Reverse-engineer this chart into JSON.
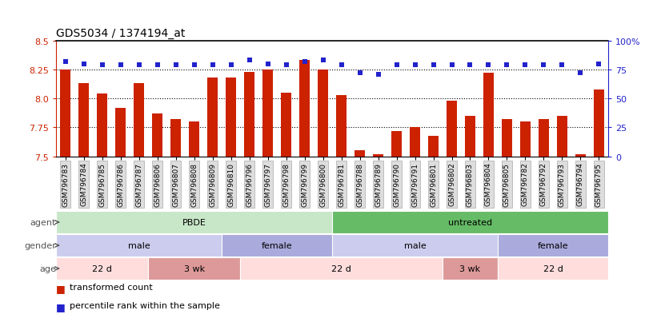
{
  "title": "GDS5034 / 1374194_at",
  "samples": [
    "GSM796783",
    "GSM796784",
    "GSM796785",
    "GSM796786",
    "GSM796787",
    "GSM796806",
    "GSM796807",
    "GSM796808",
    "GSM796809",
    "GSM796810",
    "GSM796796",
    "GSM796797",
    "GSM796798",
    "GSM796799",
    "GSM796800",
    "GSM796781",
    "GSM796788",
    "GSM796789",
    "GSM796790",
    "GSM796791",
    "GSM796801",
    "GSM796802",
    "GSM796803",
    "GSM796804",
    "GSM796805",
    "GSM796782",
    "GSM796792",
    "GSM796793",
    "GSM796794",
    "GSM796795"
  ],
  "bar_values": [
    8.25,
    8.13,
    8.04,
    7.92,
    8.13,
    7.87,
    7.82,
    7.8,
    8.18,
    8.18,
    8.23,
    8.25,
    8.05,
    8.33,
    8.25,
    8.03,
    7.55,
    7.52,
    7.72,
    7.75,
    7.68,
    7.98,
    7.85,
    8.22,
    7.82,
    7.8,
    7.82,
    7.85,
    7.52,
    8.08
  ],
  "percentile_values": [
    82,
    80,
    79,
    79,
    79,
    79,
    79,
    79,
    79,
    79,
    83,
    80,
    79,
    82,
    83,
    79,
    72,
    71,
    79,
    79,
    79,
    79,
    79,
    79,
    79,
    79,
    79,
    79,
    72,
    80
  ],
  "ylim_left": [
    7.5,
    8.5
  ],
  "ylim_right": [
    0,
    100
  ],
  "yticks_left": [
    7.5,
    7.75,
    8.0,
    8.25,
    8.5
  ],
  "yticks_right": [
    0,
    25,
    50,
    75,
    100
  ],
  "ytick_labels_right": [
    "0",
    "25",
    "50",
    "75",
    "100%"
  ],
  "bar_color": "#cc2200",
  "dot_color": "#2222cc",
  "agent_groups": [
    {
      "label": "PBDE",
      "start": 0,
      "end": 14,
      "color": "#c8e6c8"
    },
    {
      "label": "untreated",
      "start": 15,
      "end": 29,
      "color": "#66bb66"
    }
  ],
  "gender_groups": [
    {
      "label": "male",
      "start": 0,
      "end": 8,
      "color": "#ccccee"
    },
    {
      "label": "female",
      "start": 9,
      "end": 14,
      "color": "#aaaadd"
    },
    {
      "label": "male",
      "start": 15,
      "end": 23,
      "color": "#ccccee"
    },
    {
      "label": "female",
      "start": 24,
      "end": 29,
      "color": "#aaaadd"
    }
  ],
  "age_groups": [
    {
      "label": "22 d",
      "start": 0,
      "end": 4,
      "color": "#ffdddd"
    },
    {
      "label": "3 wk",
      "start": 5,
      "end": 9,
      "color": "#dd9999"
    },
    {
      "label": "22 d",
      "start": 10,
      "end": 20,
      "color": "#ffdddd"
    },
    {
      "label": "3 wk",
      "start": 21,
      "end": 23,
      "color": "#dd9999"
    },
    {
      "label": "22 d",
      "start": 24,
      "end": 29,
      "color": "#ffdddd"
    }
  ],
  "legend_items": [
    {
      "label": "transformed count",
      "color": "#cc2200"
    },
    {
      "label": "percentile rank within the sample",
      "color": "#2222cc"
    }
  ],
  "row_labels": [
    "agent",
    "gender",
    "age"
  ],
  "background_color": "#ffffff",
  "xtick_bg": "#dddddd"
}
